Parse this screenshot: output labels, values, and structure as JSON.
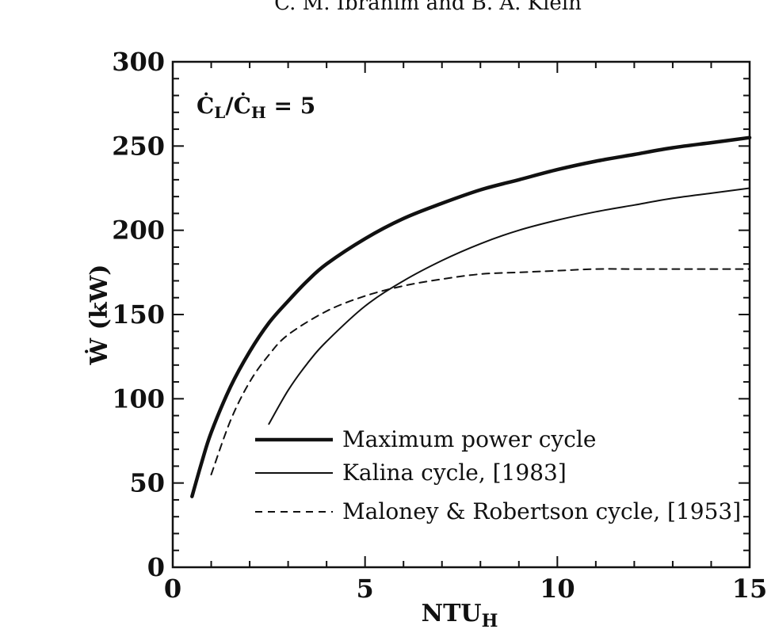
{
  "header": {
    "caption": "C. M. Ibrahim and B. A. Klein"
  },
  "chart_data": {
    "type": "line",
    "xlabel": "NTU",
    "xlabel_sub": "H",
    "ylabel": "Ẇ (kW)",
    "xlim": [
      0,
      15
    ],
    "ylim": [
      0,
      300
    ],
    "x_ticks": [
      0,
      5,
      10,
      15
    ],
    "y_ticks": [
      0,
      50,
      100,
      150,
      200,
      250,
      300
    ],
    "grid": false,
    "legend_position": "bottom-right",
    "annotation": {
      "lhs_main": "Ċ",
      "lhs_sub": "L",
      "slash": "/Ċ",
      "rhs_sub": "H",
      "value": " = 5"
    },
    "series": [
      {
        "name": "Maximum power cycle",
        "style": "thick-solid",
        "color": "#111111",
        "x": [
          0.5,
          0.75,
          1,
          1.5,
          2,
          2.5,
          3,
          3.5,
          4,
          5,
          6,
          7,
          8,
          9,
          10,
          11,
          12,
          13,
          14,
          15
        ],
        "y": [
          42,
          62,
          80,
          107,
          128,
          145,
          158,
          170,
          180,
          195,
          207,
          216,
          224,
          230,
          236,
          241,
          245,
          249,
          252,
          255
        ]
      },
      {
        "name": "Kalina cycle, [1983]",
        "style": "thin-solid",
        "color": "#111111",
        "x": [
          2.5,
          3,
          3.5,
          4,
          5,
          6,
          7,
          8,
          9,
          10,
          11,
          12,
          13,
          14,
          15
        ],
        "y": [
          85,
          105,
          121,
          134,
          155,
          170,
          182,
          192,
          200,
          206,
          211,
          215,
          219,
          222,
          225
        ]
      },
      {
        "name": "Maloney & Robertson cycle, [1953]",
        "style": "dashed",
        "color": "#111111",
        "x": [
          1,
          1.5,
          2,
          2.5,
          3,
          4,
          5,
          6,
          7,
          8,
          9,
          10,
          11,
          12,
          13,
          14,
          15
        ],
        "y": [
          55,
          87,
          110,
          126,
          138,
          152,
          161,
          167,
          171,
          174,
          175,
          176,
          177,
          177,
          177,
          177,
          177
        ]
      }
    ]
  }
}
